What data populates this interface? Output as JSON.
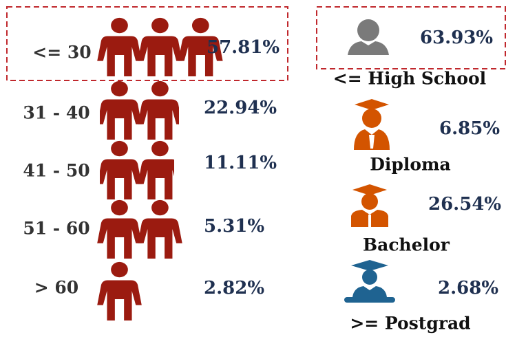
{
  "age_groups": [
    {
      "label": "<= 30",
      "value": "57.81%"
    },
    {
      "label": "31 - 40",
      "value": "22.94%"
    },
    {
      "label": "41 - 50",
      "value": "11.11%"
    },
    {
      "label": "51 - 60",
      "value": "5.31%"
    },
    {
      "label": "> 60",
      "value": "2.82%"
    }
  ],
  "education": [
    {
      "label": "<= High School",
      "value": "63.93%"
    },
    {
      "label": "Diploma",
      "value": "6.85%"
    },
    {
      "label": "Bachelor",
      "value": "26.54%"
    },
    {
      "label": ">= Postgrad",
      "value": "2.68%"
    }
  ]
}
